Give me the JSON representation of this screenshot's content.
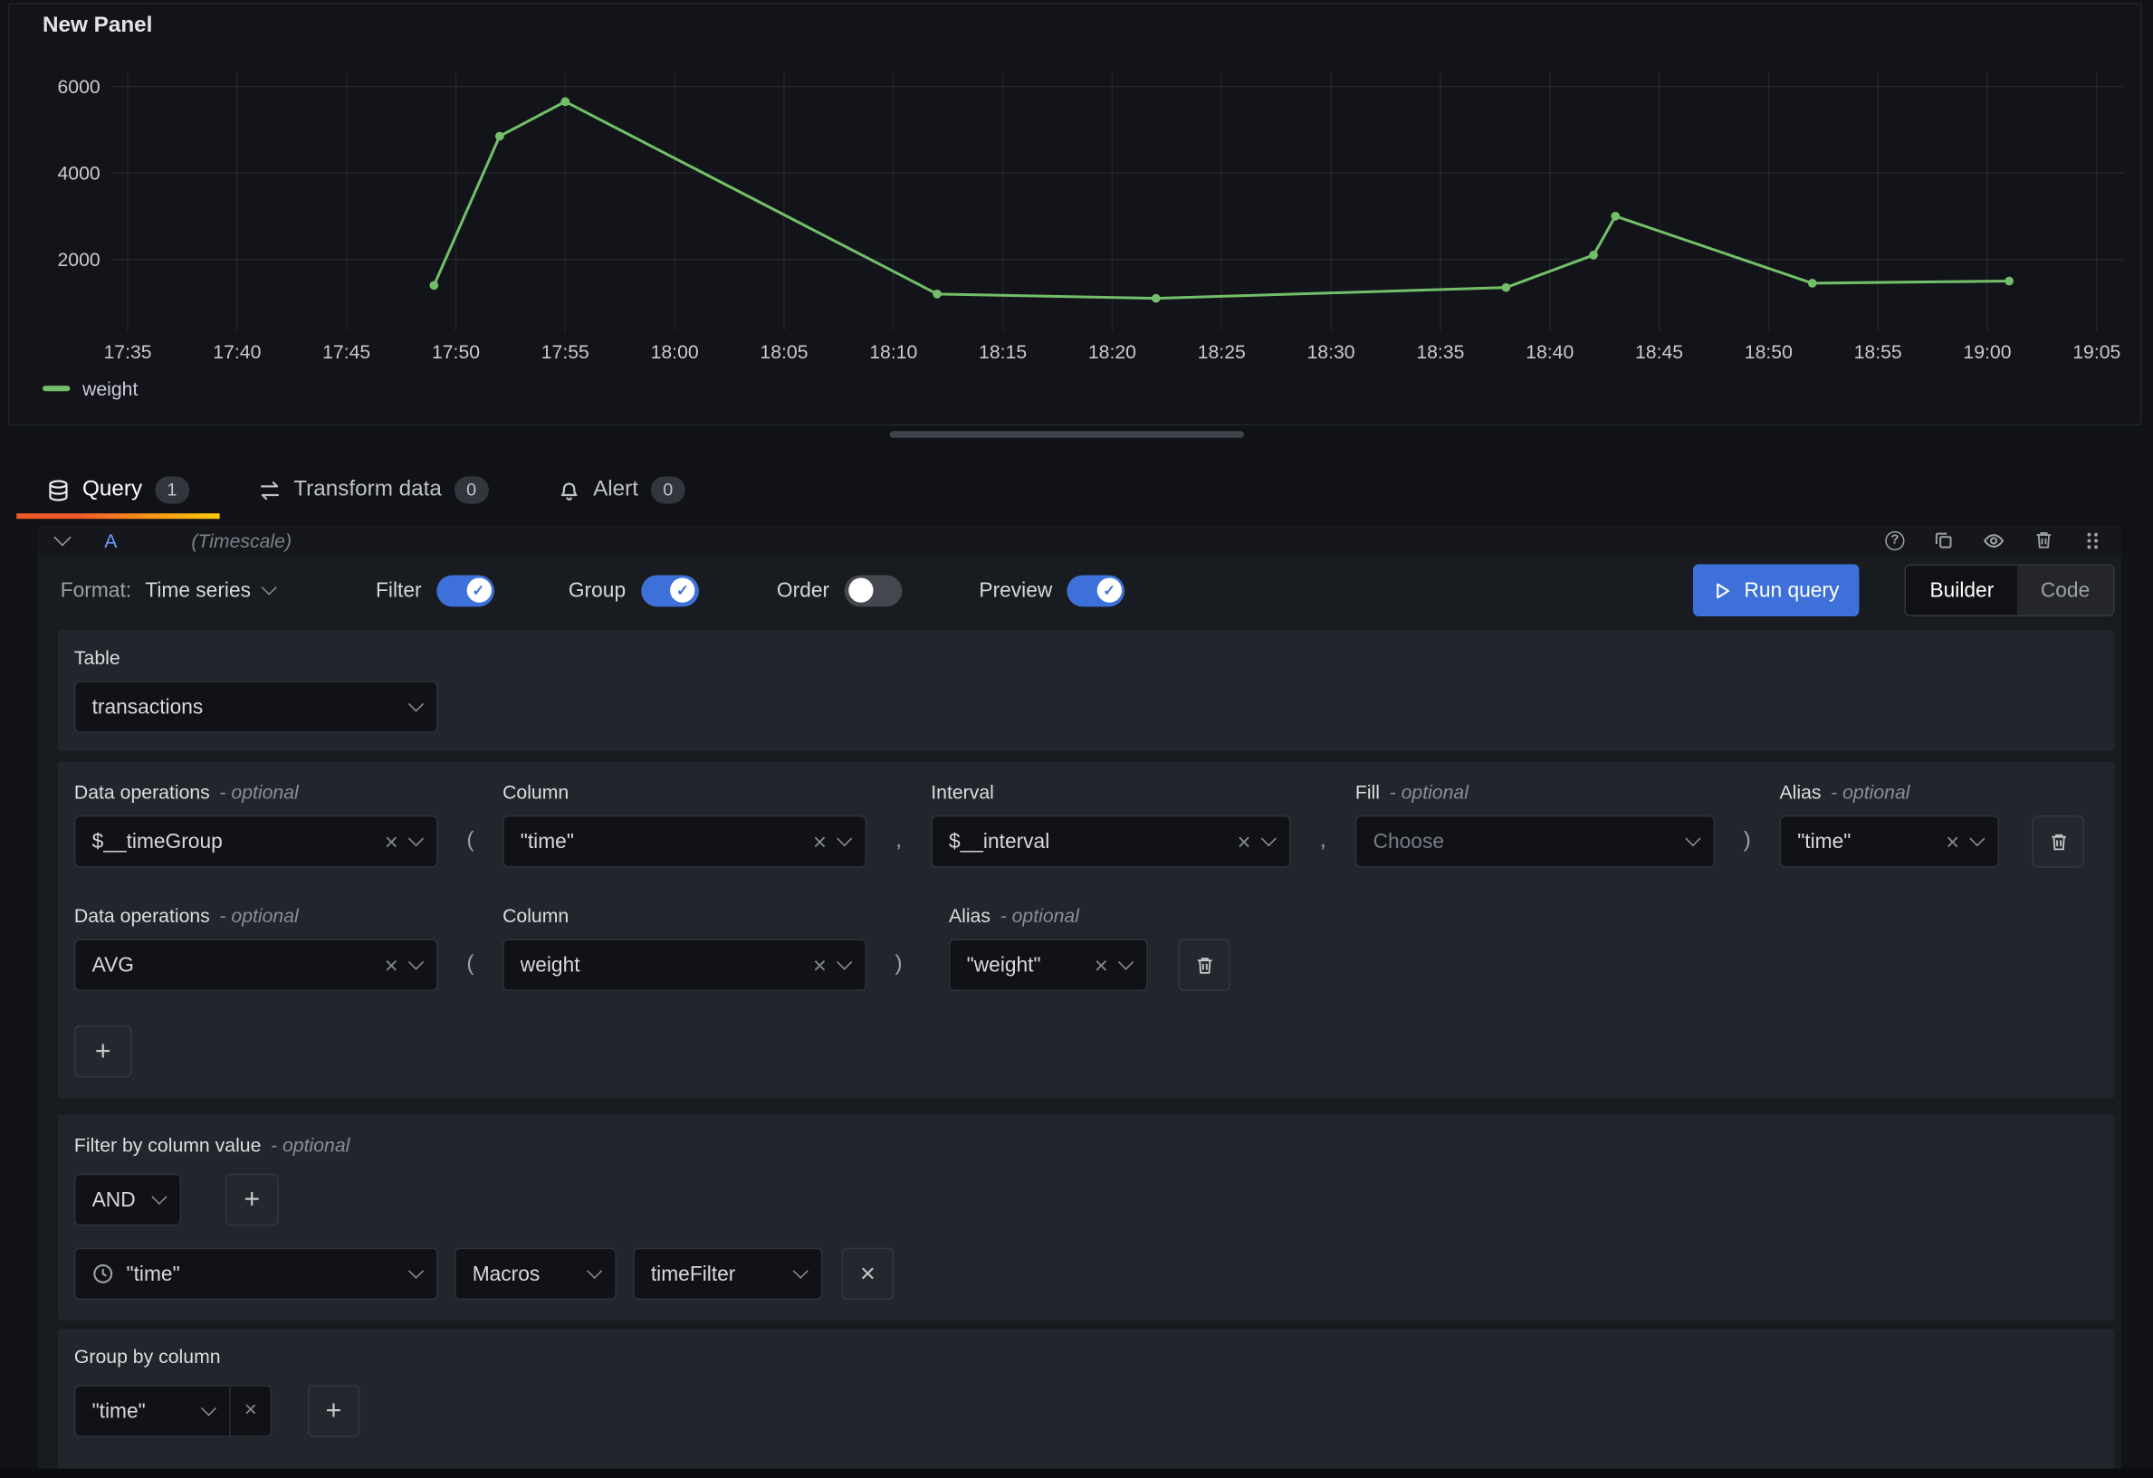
{
  "colors": {
    "accent_blue": "#3d71d9",
    "series_green": "#73bf69",
    "active_tab_orange": "#f05a28",
    "ref_id_blue": "#6e9fff"
  },
  "icons": {
    "clear": "×",
    "plus": "+",
    "check": "✓",
    "help": "?"
  },
  "panel": {
    "title": "New Panel"
  },
  "chart_data": {
    "type": "line",
    "title": "New Panel",
    "x_start": "17:35",
    "x_end": "19:05",
    "x_ticks": [
      "17:35",
      "17:40",
      "17:45",
      "17:50",
      "17:55",
      "18:00",
      "18:05",
      "18:10",
      "18:15",
      "18:20",
      "18:25",
      "18:30",
      "18:35",
      "18:40",
      "18:45",
      "18:50",
      "18:55",
      "19:00",
      "19:05"
    ],
    "y_ticks": [
      2000,
      4000,
      6000
    ],
    "grid": true,
    "legend_position": "bottom-left",
    "series": [
      {
        "name": "weight",
        "color": "#73bf69",
        "points": [
          {
            "t": "17:49",
            "v": 1400
          },
          {
            "t": "17:52",
            "v": 4850
          },
          {
            "t": "17:55",
            "v": 5650
          },
          {
            "t": "18:12",
            "v": 1200
          },
          {
            "t": "18:22",
            "v": 1100
          },
          {
            "t": "18:38",
            "v": 1350
          },
          {
            "t": "18:42",
            "v": 2100
          },
          {
            "t": "18:43",
            "v": 3000
          },
          {
            "t": "18:52",
            "v": 1450
          },
          {
            "t": "19:01",
            "v": 1500
          }
        ]
      }
    ]
  },
  "tabs": {
    "query": {
      "label": "Query",
      "badge": "1"
    },
    "transform": {
      "label": "Transform data",
      "badge": "0"
    },
    "alert": {
      "label": "Alert",
      "badge": "0"
    }
  },
  "query_row": {
    "ref": "A",
    "datasource": "(Timescale)"
  },
  "toolbar": {
    "format_label": "Format:",
    "format_value": "Time series",
    "filter_label": "Filter",
    "group_label": "Group",
    "order_label": "Order",
    "preview_label": "Preview",
    "switch_states": {
      "filter": true,
      "group": true,
      "order": false,
      "preview": true
    },
    "run_query": "Run query",
    "builder": "Builder",
    "code": "Code",
    "mode_selected": "Builder"
  },
  "editor": {
    "opt": "- optional",
    "punct": {
      "open": "(",
      "close": ")",
      "comma": ","
    },
    "table_label": "Table",
    "table_value": "transactions",
    "row1": {
      "dataop_label": "Data operations",
      "dataop_value": "$__timeGroup",
      "column_label": "Column",
      "column_value": "\"time\"",
      "interval_label": "Interval",
      "interval_value": "$__interval",
      "fill_label": "Fill",
      "fill_placeholder": "Choose",
      "alias_label": "Alias",
      "alias_value": "\"time\""
    },
    "row2": {
      "dataop_label": "Data operations",
      "dataop_value": "AVG",
      "column_label": "Column",
      "column_value": "weight",
      "alias_label": "Alias",
      "alias_value": "\"weight\""
    },
    "filter": {
      "label": "Filter by column value",
      "operator": "AND",
      "column": "\"time\"",
      "macros": "Macros",
      "fn": "timeFilter"
    },
    "groupby": {
      "label": "Group by column",
      "value": "\"time\""
    }
  }
}
